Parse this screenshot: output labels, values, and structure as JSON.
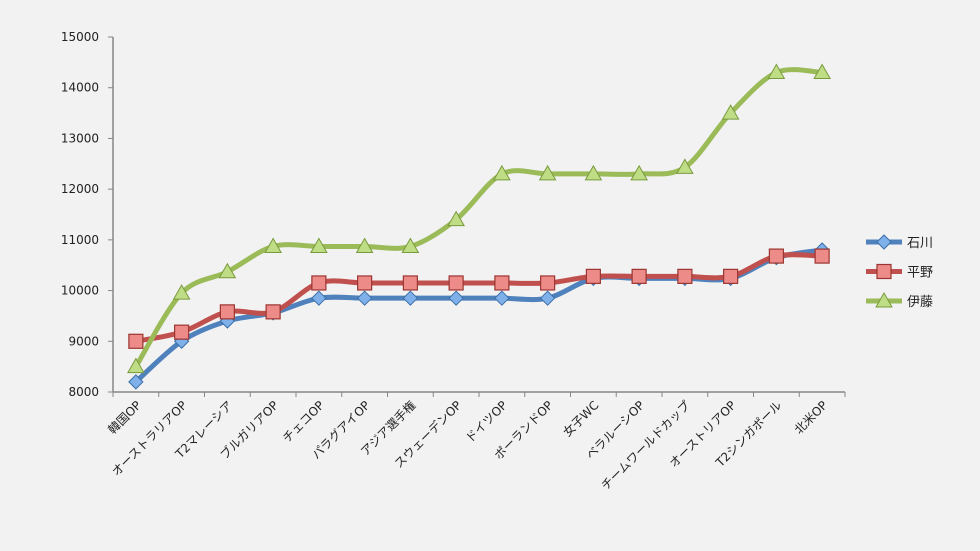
{
  "chart_data": {
    "type": "line",
    "title": "",
    "xlabel": "",
    "ylabel": "",
    "ylim": [
      8000,
      15000
    ],
    "yticks": [
      8000,
      9000,
      10000,
      11000,
      12000,
      13000,
      14000,
      15000
    ],
    "grid": false,
    "legend_position": "right",
    "categories": [
      "韓国OP",
      "オーストラリアOP",
      "T2マレーシア",
      "ブルガリアOP",
      "チェコOP",
      "パラグアイOP",
      "アジア選手権",
      "スウェーデンOP",
      "ドイツOP",
      "ポーランドOP",
      "女子WC",
      "ベラルーシOP",
      "チームワールドカップ",
      "オーストリアOP",
      "T2シンガポール",
      "北米OP"
    ],
    "series": [
      {
        "name": "石川",
        "color": "#4f81bd",
        "marker": "diamond",
        "values": [
          8200,
          9000,
          9400,
          9560,
          9850,
          9850,
          9850,
          9850,
          9850,
          9850,
          10240,
          10240,
          10240,
          10240,
          10650,
          10800
        ]
      },
      {
        "name": "平野",
        "color": "#c0504d",
        "marker": "square",
        "values": [
          9000,
          9180,
          9580,
          9580,
          10150,
          10150,
          10150,
          10150,
          10150,
          10150,
          10280,
          10280,
          10280,
          10280,
          10680,
          10680
        ]
      },
      {
        "name": "伊藤",
        "color": "#9bbb59",
        "marker": "triangle",
        "values": [
          8500,
          9950,
          10370,
          10870,
          10870,
          10870,
          10870,
          11400,
          12300,
          12300,
          12300,
          12300,
          12430,
          13500,
          14300,
          14300
        ]
      }
    ]
  }
}
